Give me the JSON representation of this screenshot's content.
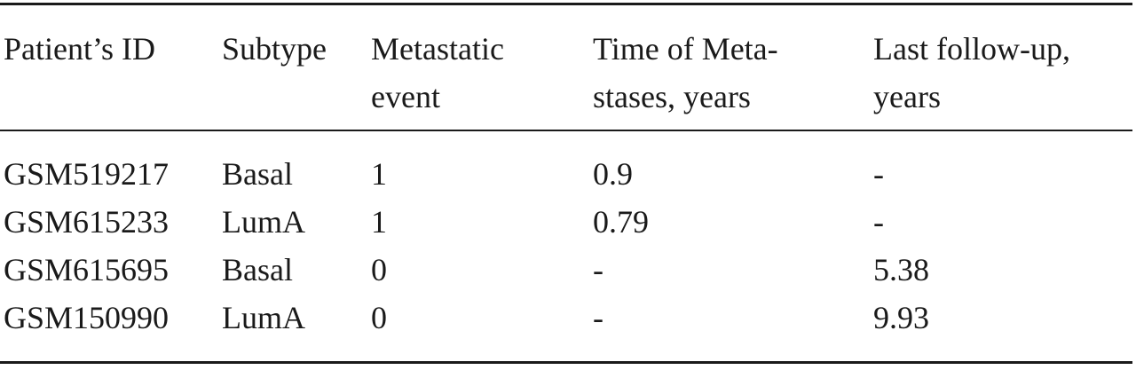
{
  "table": {
    "headers": [
      [
        "Patient’s ID"
      ],
      [
        "Subtype"
      ],
      [
        "Metastatic",
        "event"
      ],
      [
        "Time of Meta-",
        "stases, years"
      ],
      [
        "Last follow-up,",
        "years"
      ]
    ],
    "rows": [
      [
        "GSM519217",
        "Basal",
        "1",
        "0.9",
        "-"
      ],
      [
        "GSM615233",
        "LumA",
        "1",
        "0.79",
        "-"
      ],
      [
        "GSM615695",
        "Basal",
        "0",
        "-",
        "5.38"
      ],
      [
        "GSM150990",
        "LumA",
        "0",
        "-",
        "9.93"
      ]
    ]
  }
}
